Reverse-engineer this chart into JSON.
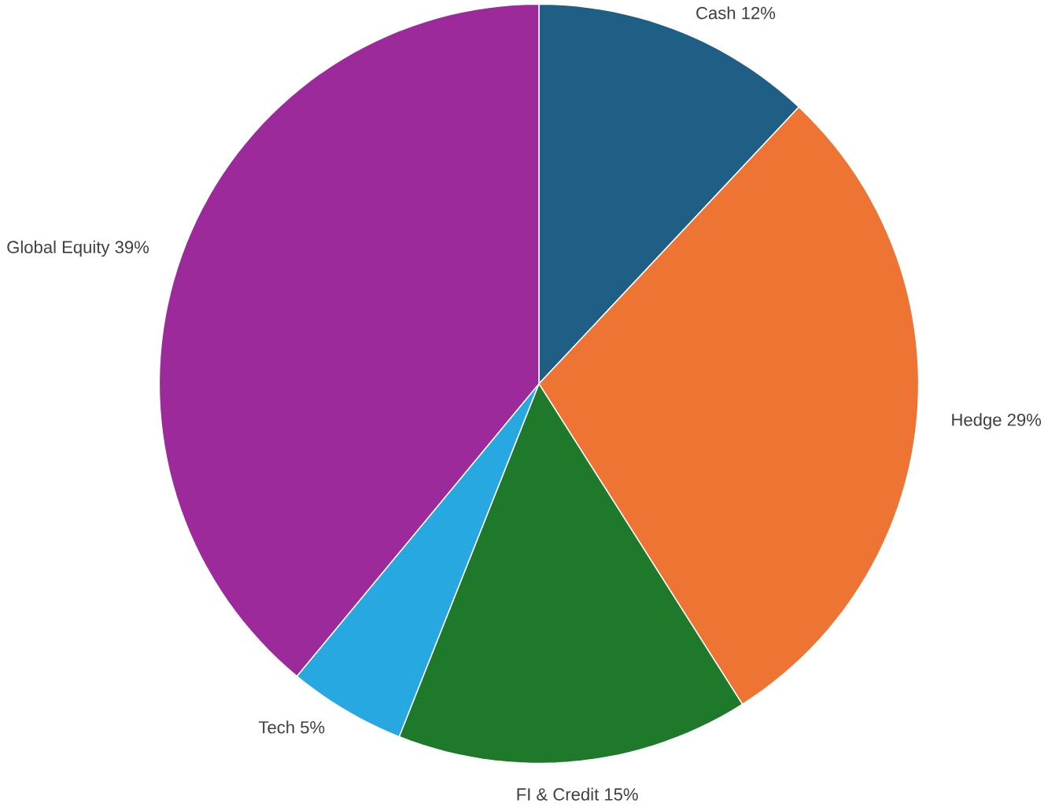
{
  "chart_data": {
    "type": "pie",
    "categories": [
      "Cash",
      "Hedge",
      "FI & Credit",
      "Tech",
      "Global Equity"
    ],
    "values": [
      12,
      29,
      15,
      5,
      39
    ],
    "value_labels": [
      "12%",
      "29%",
      "15%",
      "5%",
      "39%"
    ],
    "colors": [
      "#1f5f86",
      "#ee7434",
      "#1e7a2a",
      "#27a8e0",
      "#9c2a9a"
    ]
  }
}
